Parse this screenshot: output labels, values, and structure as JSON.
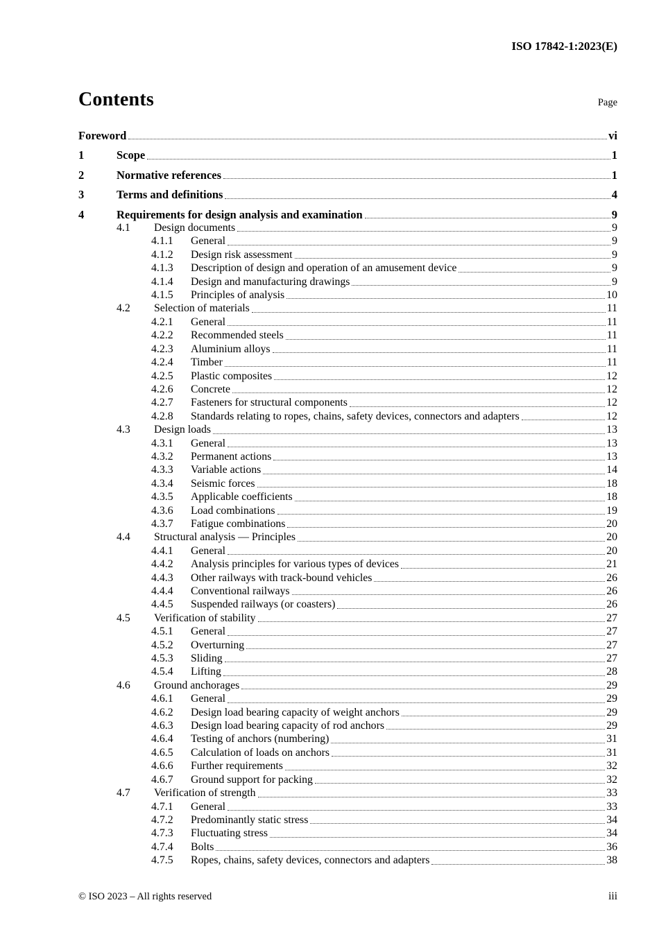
{
  "colors": {
    "background": "#ffffff",
    "text": "#000000",
    "leader_dots": "#404040"
  },
  "header": {
    "doc_ref": "ISO 17842-1:2023(E)"
  },
  "contents": {
    "title": "Contents",
    "page_label": "Page"
  },
  "toc": [
    {
      "level": 0,
      "num": "",
      "title": "Foreword",
      "page": "vi",
      "bold": true
    },
    {
      "level": 1,
      "num": "1",
      "title": "Scope",
      "page": "1",
      "bold": true
    },
    {
      "level": 1,
      "num": "2",
      "title": "Normative references",
      "page": "1",
      "bold": true
    },
    {
      "level": 1,
      "num": "3",
      "title": "Terms and definitions",
      "page": "4",
      "bold": true
    },
    {
      "level": 1,
      "num": "4",
      "title": "Requirements for design analysis and examination",
      "page": "9",
      "bold": true
    },
    {
      "level": 2,
      "num": "4.1",
      "title": "Design documents",
      "page": "9"
    },
    {
      "level": 3,
      "num": "4.1.1",
      "title": "General",
      "page": "9"
    },
    {
      "level": 3,
      "num": "4.1.2",
      "title": "Design risk assessment",
      "page": "9"
    },
    {
      "level": 3,
      "num": "4.1.3",
      "title": "Description of design and operation of an amusement device",
      "page": "9"
    },
    {
      "level": 3,
      "num": "4.1.4",
      "title": "Design and manufacturing drawings",
      "page": "9"
    },
    {
      "level": 3,
      "num": "4.1.5",
      "title": "Principles of analysis",
      "page": "10"
    },
    {
      "level": 2,
      "num": "4.2",
      "title": "Selection of materials",
      "page": "11"
    },
    {
      "level": 3,
      "num": "4.2.1",
      "title": "General",
      "page": "11"
    },
    {
      "level": 3,
      "num": "4.2.2",
      "title": "Recommended steels",
      "page": "11"
    },
    {
      "level": 3,
      "num": "4.2.3",
      "title": "Aluminium alloys",
      "page": "11"
    },
    {
      "level": 3,
      "num": "4.2.4",
      "title": "Timber",
      "page": "11"
    },
    {
      "level": 3,
      "num": "4.2.5",
      "title": "Plastic composites",
      "page": "12"
    },
    {
      "level": 3,
      "num": "4.2.6",
      "title": "Concrete",
      "page": "12"
    },
    {
      "level": 3,
      "num": "4.2.7",
      "title": "Fasteners for structural components",
      "page": "12"
    },
    {
      "level": 3,
      "num": "4.2.8",
      "title": "Standards relating to ropes, chains, safety devices, connectors and adapters",
      "page": "12"
    },
    {
      "level": 2,
      "num": "4.3",
      "title": "Design loads",
      "page": "13"
    },
    {
      "level": 3,
      "num": "4.3.1",
      "title": "General",
      "page": "13"
    },
    {
      "level": 3,
      "num": "4.3.2",
      "title": "Permanent actions",
      "page": "13"
    },
    {
      "level": 3,
      "num": "4.3.3",
      "title": "Variable actions",
      "page": "14"
    },
    {
      "level": 3,
      "num": "4.3.4",
      "title": "Seismic forces",
      "page": "18"
    },
    {
      "level": 3,
      "num": "4.3.5",
      "title": "Applicable coefficients",
      "page": "18"
    },
    {
      "level": 3,
      "num": "4.3.6",
      "title": "Load combinations",
      "page": "19"
    },
    {
      "level": 3,
      "num": "4.3.7",
      "title": "Fatigue combinations",
      "page": "20"
    },
    {
      "level": 2,
      "num": "4.4",
      "title": "Structural analysis — Principles",
      "page": "20"
    },
    {
      "level": 3,
      "num": "4.4.1",
      "title": "General",
      "page": "20"
    },
    {
      "level": 3,
      "num": "4.4.2",
      "title": "Analysis principles for various types of devices",
      "page": "21"
    },
    {
      "level": 3,
      "num": "4.4.3",
      "title": "Other railways with track-bound vehicles",
      "page": "26"
    },
    {
      "level": 3,
      "num": "4.4.4",
      "title": "Conventional railways",
      "page": "26"
    },
    {
      "level": 3,
      "num": "4.4.5",
      "title": "Suspended railways (or coasters)",
      "page": "26"
    },
    {
      "level": 2,
      "num": "4.5",
      "title": "Verification of stability",
      "page": "27"
    },
    {
      "level": 3,
      "num": "4.5.1",
      "title": "General",
      "page": "27"
    },
    {
      "level": 3,
      "num": "4.5.2",
      "title": "Overturning",
      "page": "27"
    },
    {
      "level": 3,
      "num": "4.5.3",
      "title": "Sliding",
      "page": "27"
    },
    {
      "level": 3,
      "num": "4.5.4",
      "title": "Lifting",
      "page": "28"
    },
    {
      "level": 2,
      "num": "4.6",
      "title": "Ground anchorages",
      "page": "29"
    },
    {
      "level": 3,
      "num": "4.6.1",
      "title": "General",
      "page": "29"
    },
    {
      "level": 3,
      "num": "4.6.2",
      "title": "Design load bearing capacity of weight anchors",
      "page": "29"
    },
    {
      "level": 3,
      "num": "4.6.3",
      "title": "Design load bearing capacity of rod anchors",
      "page": "29"
    },
    {
      "level": 3,
      "num": "4.6.4",
      "title": "Testing of anchors (numbering)",
      "page": "31"
    },
    {
      "level": 3,
      "num": "4.6.5",
      "title": "Calculation of loads on anchors",
      "page": "31"
    },
    {
      "level": 3,
      "num": "4.6.6",
      "title": "Further requirements",
      "page": "32"
    },
    {
      "level": 3,
      "num": "4.6.7",
      "title": "Ground support for packing",
      "page": "32"
    },
    {
      "level": 2,
      "num": "4.7",
      "title": "Verification of strength",
      "page": "33"
    },
    {
      "level": 3,
      "num": "4.7.1",
      "title": "General",
      "page": "33"
    },
    {
      "level": 3,
      "num": "4.7.2",
      "title": "Predominantly static stress",
      "page": "34"
    },
    {
      "level": 3,
      "num": "4.7.3",
      "title": "Fluctuating stress",
      "page": "34"
    },
    {
      "level": 3,
      "num": "4.7.4",
      "title": "Bolts",
      "page": "36"
    },
    {
      "level": 3,
      "num": "4.7.5",
      "title": "Ropes, chains, safety devices, connectors and adapters",
      "page": "38"
    }
  ],
  "footer": {
    "copyright": "© ISO 2023 – All rights reserved",
    "page_number": "iii"
  }
}
